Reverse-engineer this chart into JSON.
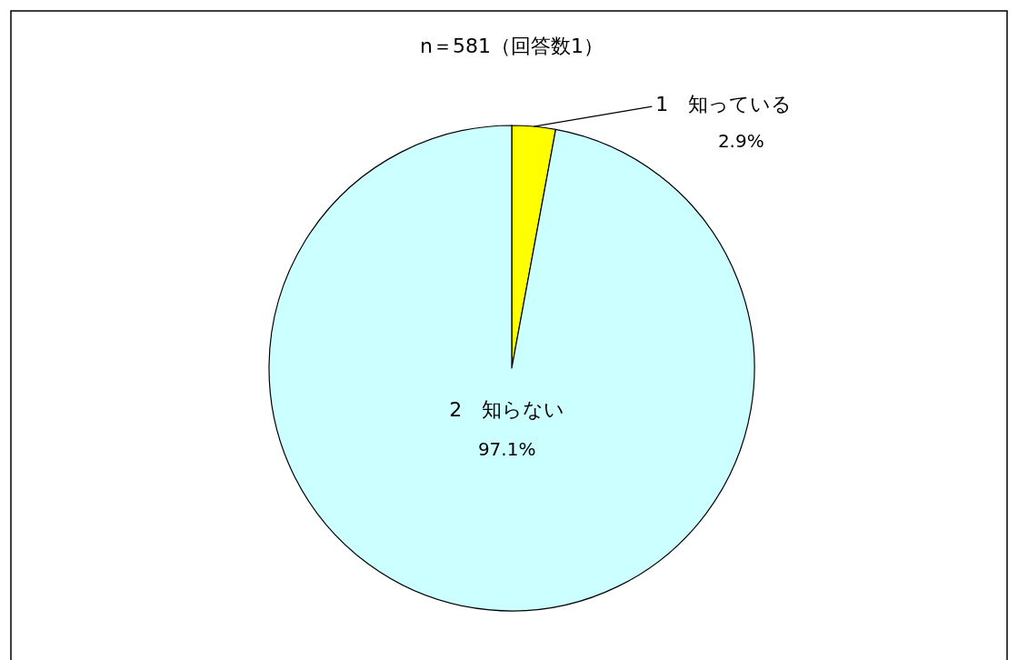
{
  "chart_data": {
    "type": "pie",
    "title": "n＝581（回答数1）",
    "categories": [
      "1　知っている",
      "2　知らない"
    ],
    "values": [
      2.9,
      97.1
    ],
    "colors": [
      "#ffff00",
      "#ccffff"
    ],
    "value_labels": [
      "2.9%",
      "97.1%"
    ]
  }
}
